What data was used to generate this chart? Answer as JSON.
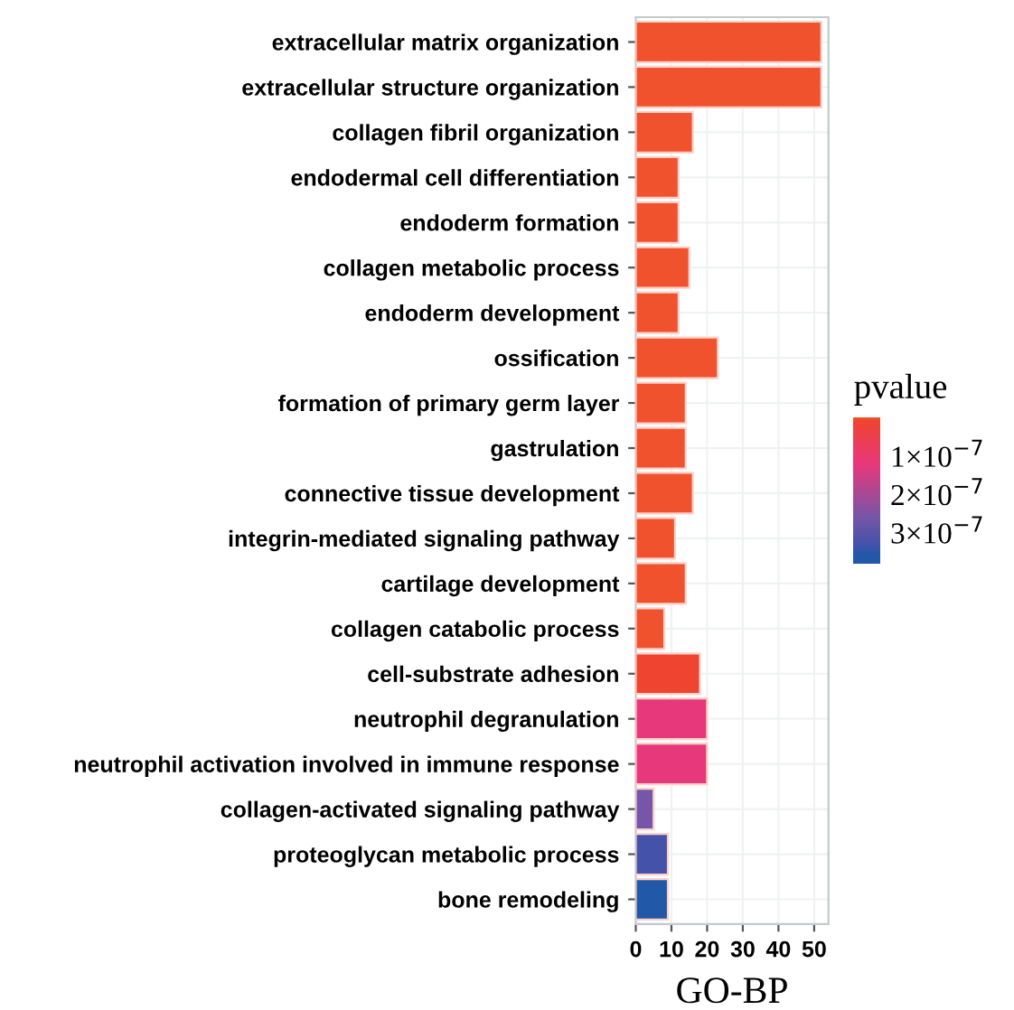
{
  "chart_data": {
    "type": "bar",
    "orientation": "horizontal",
    "xlabel": "GO-BP",
    "clabel": "pvalue",
    "categories": [
      "extracellular matrix organization",
      "extracellular structure organization",
      "collagen fibril organization",
      "endodermal cell differentiation",
      "endoderm formation",
      "collagen metabolic process",
      "endoderm development",
      "ossification",
      "formation of primary germ layer",
      "gastrulation",
      "connective tissue development",
      "integrin-mediated signaling pathway",
      "cartilage development",
      "collagen catabolic process",
      "cell-substrate adhesion",
      "neutrophil degranulation",
      "neutrophil activation involved in immune response",
      "collagen-activated signaling pathway",
      "proteoglycan metabolic process",
      "bone remodeling"
    ],
    "values": [
      52,
      52,
      16,
      12,
      12,
      15,
      12,
      23,
      14,
      14,
      16,
      11,
      14,
      8,
      18,
      20,
      20,
      5,
      9,
      9
    ],
    "cvalues": [
      1e-09,
      1e-09,
      1e-09,
      1e-09,
      1e-09,
      1e-09,
      1e-09,
      1e-09,
      1e-09,
      1e-09,
      1e-09,
      1e-09,
      1e-09,
      1e-09,
      5e-09,
      1.2e-07,
      1.2e-07,
      2.6e-07,
      3.3e-07,
      3.6e-07
    ],
    "colors": [
      "#f0522e",
      "#f0522e",
      "#f0522e",
      "#f0522e",
      "#f0522e",
      "#f0522e",
      "#f0522e",
      "#f0522e",
      "#f0522e",
      "#f0522e",
      "#f0522e",
      "#f0522e",
      "#f0522e",
      "#f0522e",
      "#ee4430",
      "#e8387c",
      "#e8387c",
      "#7656a8",
      "#4452aa",
      "#2158a8"
    ],
    "xlim": [
      0,
      54
    ],
    "xticks": [
      0,
      10,
      20,
      30,
      40,
      50
    ],
    "clim": [
      0,
      3.8e-07
    ],
    "cticks": [
      {
        "value": 1e-07,
        "label": "1×10$^{−7}$"
      },
      {
        "value": 2e-07,
        "label": "2×10$^{−7}$"
      },
      {
        "value": 3e-07,
        "label": "3×10$^{−7}$"
      }
    ],
    "grid": true
  }
}
